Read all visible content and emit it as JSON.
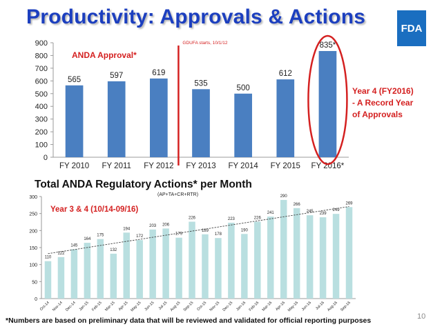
{
  "title": "Productivity: Approvals & Actions",
  "logo": "FDA",
  "footnote": "*Numbers are based on preliminary data that will be reviewed and validated for official reporting purposes",
  "page_number": "10",
  "colors": {
    "title": "#1c3fbf",
    "bar_blue": "#4a7fc1",
    "bar_teal": "#b9dfe0",
    "accent_red": "#d42020",
    "logo_bg": "#1a6ec0"
  },
  "chart_data": [
    {
      "type": "bar",
      "legend_label": "ANDA Approval*",
      "categories": [
        "FY 2010",
        "FY 2011",
        "FY 2012",
        "FY 2013",
        "FY 2014",
        "FY 2015",
        "FY 2016*"
      ],
      "values": [
        565,
        597,
        619,
        535,
        500,
        612,
        835
      ],
      "value_labels": [
        "565",
        "597",
        "619",
        "535",
        "500",
        "612",
        "835*"
      ],
      "ylim": [
        0,
        900
      ],
      "yticks": [
        0,
        100,
        200,
        300,
        400,
        500,
        600,
        700,
        800,
        900
      ],
      "grid": false,
      "annotations": {
        "gdufa": "GDUFA starts, 10/1/12",
        "record_lines": [
          "Year 4 (FY2016)",
          "- A Record Year",
          "of Approvals"
        ]
      }
    },
    {
      "type": "bar",
      "title": "Total ANDA Regulatory Actions* per Month",
      "subtitle": "(AP+TA+CR+RTR)",
      "legend_label": "Year 3 & 4 (10/14-09/16)",
      "categories": [
        "Oct-14",
        "Nov-14",
        "Dec-14",
        "Jan-15",
        "Feb-15",
        "Mar-15",
        "Apr-15",
        "May-15",
        "Jun-15",
        "Jul-15",
        "Aug-15",
        "Sep-15",
        "Oct-15",
        "Nov-15",
        "Dec-15",
        "Jan-16",
        "Feb-16",
        "Mar-16",
        "Apr-16",
        "May-16",
        "Jun-16",
        "Jul-16",
        "Aug-16",
        "Sep-16"
      ],
      "values": [
        110,
        122,
        145,
        164,
        175,
        132,
        194,
        172,
        203,
        206,
        179,
        226,
        189,
        178,
        223,
        190,
        226,
        241,
        290,
        266,
        245,
        239,
        249,
        269
      ],
      "ylim": [
        0,
        300
      ],
      "yticks": [
        0,
        50,
        100,
        150,
        200,
        250,
        300
      ],
      "trendline": true,
      "grid": false
    }
  ]
}
